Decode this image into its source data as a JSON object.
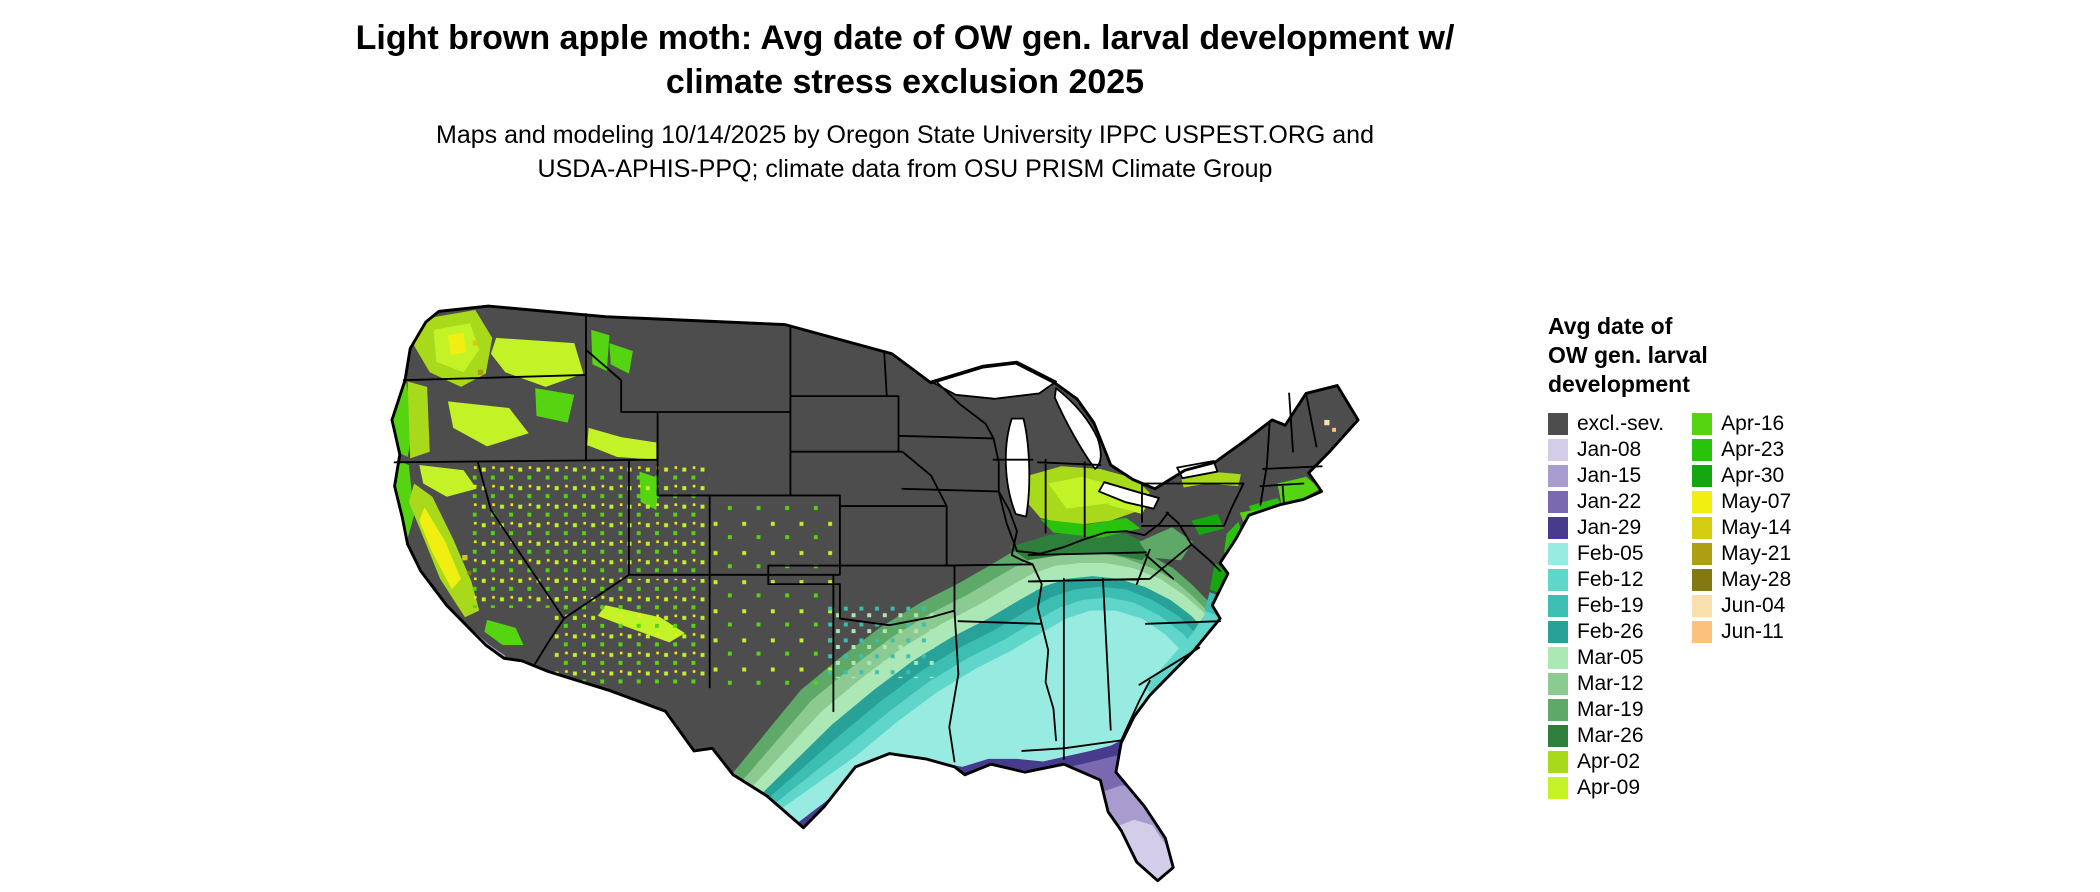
{
  "title": {
    "line1": "Light brown apple moth: Avg date of OW gen. larval development w/",
    "line2": "climate stress exclusion 2025"
  },
  "subtitle": {
    "line1": "Maps and modeling 10/14/2025 by Oregon State University IPPC USPEST.ORG and",
    "line2": "USDA-APHIS-PPQ; climate data from OSU PRISM Climate Group"
  },
  "legend": {
    "title_lines": [
      "Avg date of",
      "OW gen. larval",
      "development"
    ],
    "column_break": 15,
    "entries": [
      {
        "key": "excl",
        "label": "excl.-sev.",
        "color": "#4d4d4d"
      },
      {
        "key": "jan08",
        "label": "Jan-08",
        "color": "#d3cdea"
      },
      {
        "key": "jan15",
        "label": "Jan-15",
        "color": "#a79ccd"
      },
      {
        "key": "jan22",
        "label": "Jan-22",
        "color": "#7a68b0"
      },
      {
        "key": "jan29",
        "label": "Jan-29",
        "color": "#483a8d"
      },
      {
        "key": "feb05",
        "label": "Feb-05",
        "color": "#97ebe1"
      },
      {
        "key": "feb12",
        "label": "Feb-12",
        "color": "#60d6ca"
      },
      {
        "key": "feb19",
        "label": "Feb-19",
        "color": "#3cbfb2"
      },
      {
        "key": "feb26",
        "label": "Feb-26",
        "color": "#28a198"
      },
      {
        "key": "mar05",
        "label": "Mar-05",
        "color": "#ace8b5"
      },
      {
        "key": "mar12",
        "label": "Mar-12",
        "color": "#8bca90"
      },
      {
        "key": "mar19",
        "label": "Mar-19",
        "color": "#5ea968"
      },
      {
        "key": "mar26",
        "label": "Mar-26",
        "color": "#2e7e3c"
      },
      {
        "key": "apr02",
        "label": "Apr-02",
        "color": "#a8d91b"
      },
      {
        "key": "apr09",
        "label": "Apr-09",
        "color": "#c3f326"
      },
      {
        "key": "apr16",
        "label": "Apr-16",
        "color": "#55d411"
      },
      {
        "key": "apr23",
        "label": "Apr-23",
        "color": "#29c20d"
      },
      {
        "key": "apr30",
        "label": "Apr-30",
        "color": "#16a60f"
      },
      {
        "key": "may07",
        "label": "May-07",
        "color": "#f1ef12"
      },
      {
        "key": "may14",
        "label": "May-14",
        "color": "#d4cc10"
      },
      {
        "key": "may21",
        "label": "May-21",
        "color": "#ac9f12"
      },
      {
        "key": "may28",
        "label": "May-28",
        "color": "#847813"
      },
      {
        "key": "jun04",
        "label": "Jun-04",
        "color": "#f8dfae"
      },
      {
        "key": "jun11",
        "label": "Jun-11",
        "color": "#fcc17d"
      }
    ]
  }
}
